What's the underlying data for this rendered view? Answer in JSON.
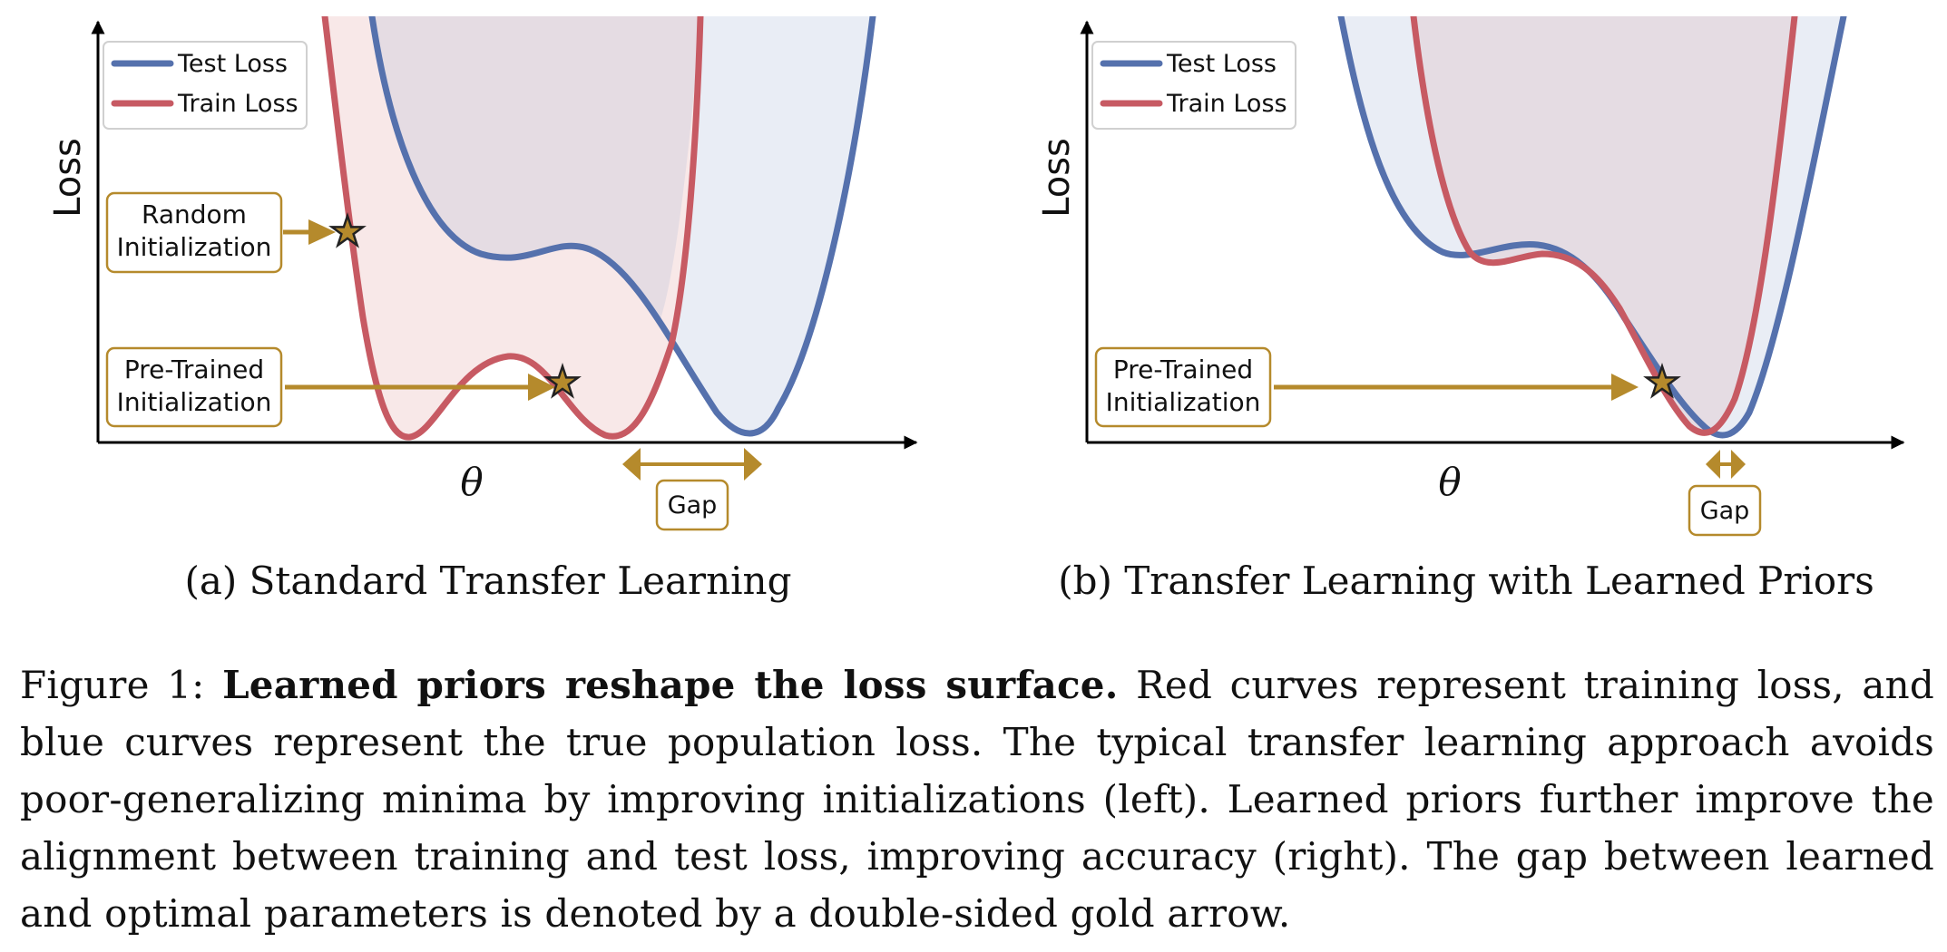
{
  "colors": {
    "test": "#5571ad",
    "train": "#c75a63",
    "gold": "#b58a2c",
    "test_fill": "#e9edf5",
    "train_fill": "#f8e8e8",
    "overlap_fill": "#e5dce3"
  },
  "icons": [
    "star-icon",
    "arrow-icon",
    "double-arrow-icon"
  ],
  "panels": [
    {
      "id": "a",
      "legend": {
        "test": "Test Loss",
        "train": "Train Loss"
      },
      "ylabel": "Loss",
      "xlabel": "θ",
      "annotations": {
        "random_l1": "Random",
        "random_l2": "Initialization",
        "pretrained_l1": "Pre-Trained",
        "pretrained_l2": "Initialization",
        "gap": "Gap"
      },
      "subcaption": "(a) Standard Transfer Learning"
    },
    {
      "id": "b",
      "legend": {
        "test": "Test Loss",
        "train": "Train Loss"
      },
      "ylabel": "Loss",
      "xlabel": "θ",
      "annotations": {
        "pretrained_l1": "Pre-Trained",
        "pretrained_l2": "Initialization",
        "gap": "Gap"
      },
      "subcaption": "(b) Transfer Learning with Learned Priors"
    }
  ],
  "caption": {
    "prefix": "Figure 1:",
    "bold": "Learned priors reshape the loss surface.",
    "body": "Red curves represent training loss, and blue curves represent the true population loss. The typical transfer learning approach avoids poor-generalizing minima by improving initializations (left). Learned priors further improve the alignment between training and test loss, improving accuracy (right). The gap between learned and optimal parameters is denoted by a double-sided gold arrow."
  }
}
